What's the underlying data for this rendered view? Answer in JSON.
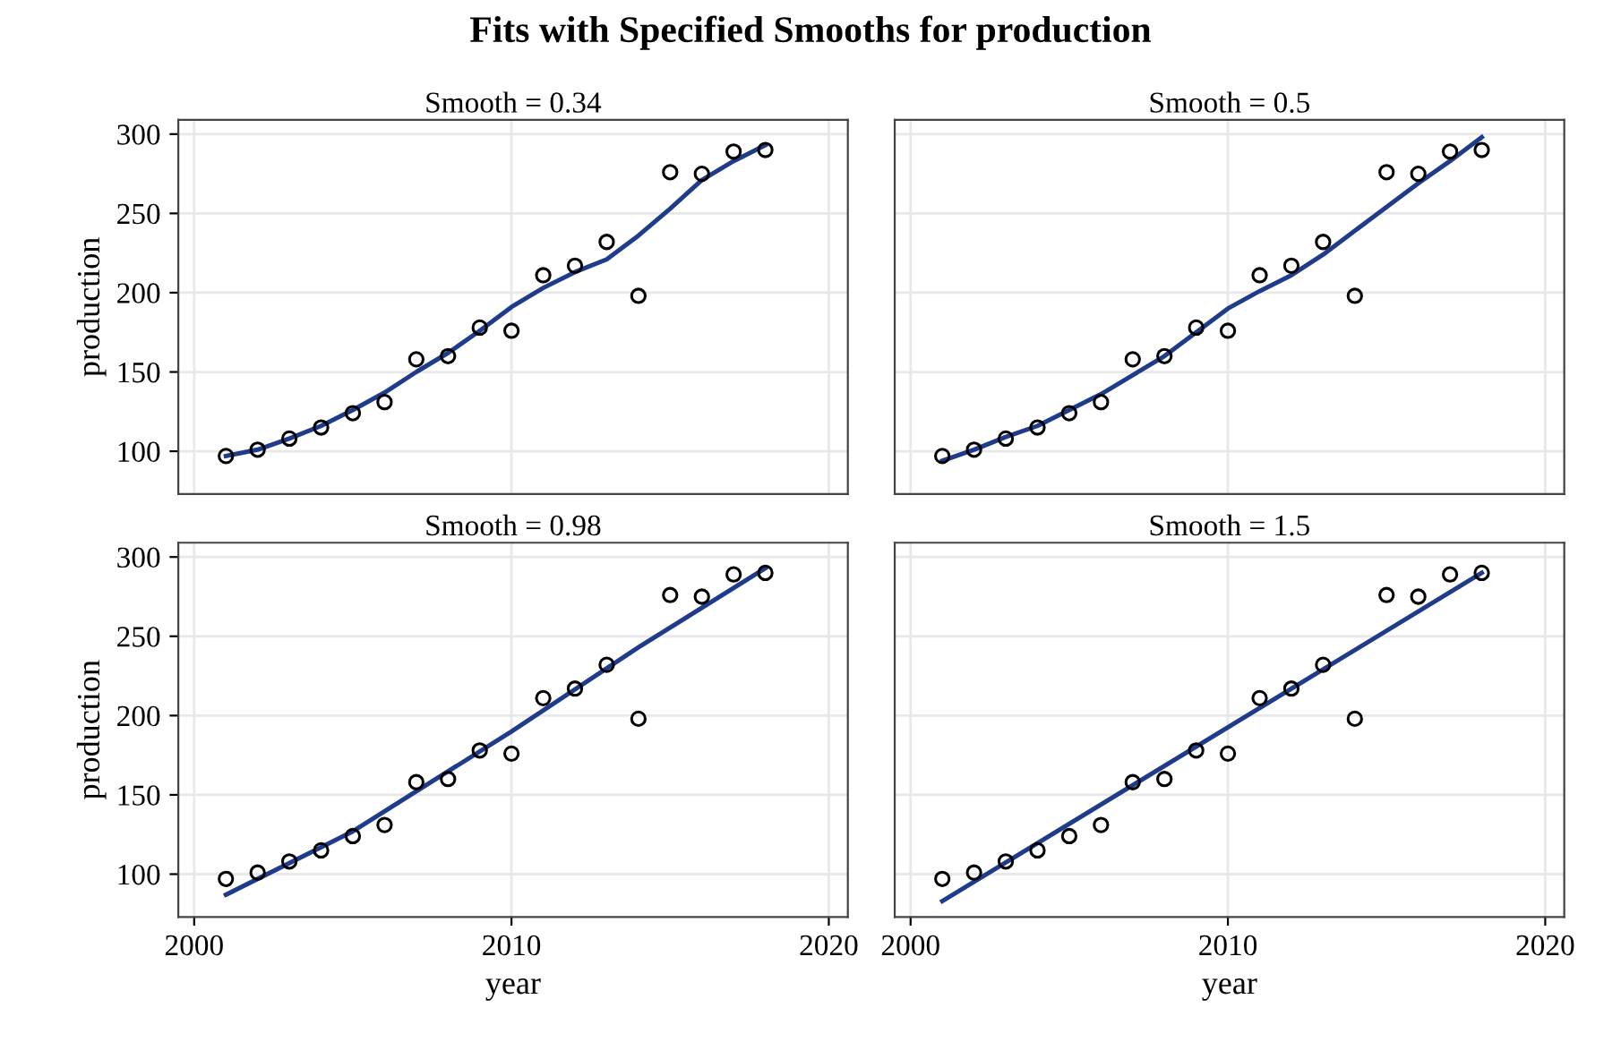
{
  "chart_data": [
    {
      "type": "scatter",
      "title": "Fits with Specified Smooths for production",
      "subtitle": "Smooth = 0.34",
      "ylabel": "production",
      "xlim": [
        1999.5,
        2020.6
      ],
      "ylim": [
        73,
        309
      ],
      "xticks": [
        2000,
        2010,
        2020
      ],
      "yticks": [
        100,
        150,
        200,
        250,
        300
      ],
      "tick_labels": "y",
      "grid": true,
      "marker": "circle",
      "series": [
        {
          "color": "#000000",
          "x": [
            2001,
            2002,
            2003,
            2004,
            2005,
            2006,
            2007,
            2008,
            2009,
            2010,
            2011,
            2012,
            2013,
            2014,
            2015,
            2016,
            2017,
            2018
          ],
          "values": [
            97,
            101,
            108,
            115,
            124,
            131,
            158,
            160,
            178,
            176,
            211,
            217,
            232,
            198,
            276,
            275,
            289,
            290
          ]
        },
        {
          "type": "line",
          "color": "#1f3c8c",
          "marker": "none",
          "x": [
            2001,
            2002,
            2003,
            2004,
            2005,
            2006,
            2007,
            2008,
            2009,
            2010,
            2011,
            2012,
            2013,
            2014,
            2015,
            2016,
            2017,
            2018
          ],
          "values": [
            97,
            101,
            108,
            116,
            126,
            137,
            150,
            162,
            176,
            191,
            203,
            213,
            221,
            236,
            253,
            271,
            283,
            293
          ]
        }
      ]
    },
    {
      "type": "scatter",
      "subtitle": "Smooth = 0.5",
      "xlim": [
        1999.5,
        2020.6
      ],
      "ylim": [
        73,
        309
      ],
      "xticks": [
        2000,
        2010,
        2020
      ],
      "yticks": [
        100,
        150,
        200,
        250,
        300
      ],
      "tick_labels": false,
      "grid": true,
      "marker": "circle",
      "series": [
        {
          "color": "#000000",
          "x": [
            2001,
            2002,
            2003,
            2004,
            2005,
            2006,
            2007,
            2008,
            2009,
            2010,
            2011,
            2012,
            2013,
            2014,
            2015,
            2016,
            2017,
            2018
          ],
          "values": [
            97,
            101,
            108,
            115,
            124,
            131,
            158,
            160,
            178,
            176,
            211,
            217,
            232,
            198,
            276,
            275,
            289,
            290
          ]
        },
        {
          "type": "line",
          "color": "#1f3c8c",
          "marker": "none",
          "x": [
            2001,
            2002,
            2003,
            2004,
            2005,
            2006,
            2007,
            2008,
            2009,
            2010,
            2011,
            2012,
            2013,
            2014,
            2015,
            2016,
            2017,
            2018
          ],
          "values": [
            94,
            101,
            109,
            116,
            126,
            136,
            148,
            160,
            175,
            190,
            201,
            211,
            224,
            239,
            254,
            269,
            283,
            298
          ]
        }
      ]
    },
    {
      "type": "scatter",
      "subtitle": "Smooth = 0.98",
      "xlabel": "year",
      "ylabel": "production",
      "xlim": [
        1999.5,
        2020.6
      ],
      "ylim": [
        73,
        309
      ],
      "xticks": [
        2000,
        2010,
        2020
      ],
      "yticks": [
        100,
        150,
        200,
        250,
        300
      ],
      "grid": true,
      "marker": "circle",
      "series": [
        {
          "color": "#000000",
          "x": [
            2001,
            2002,
            2003,
            2004,
            2005,
            2006,
            2007,
            2008,
            2009,
            2010,
            2011,
            2012,
            2013,
            2014,
            2015,
            2016,
            2017,
            2018
          ],
          "values": [
            97,
            101,
            108,
            115,
            124,
            131,
            158,
            160,
            178,
            176,
            211,
            217,
            232,
            198,
            276,
            275,
            289,
            290
          ]
        },
        {
          "type": "line",
          "color": "#1f3c8c",
          "marker": "none",
          "x": [
            2001,
            2005,
            2010,
            2014,
            2018
          ],
          "values": [
            87,
            127,
            190,
            243,
            293
          ]
        }
      ]
    },
    {
      "type": "scatter",
      "subtitle": "Smooth = 1.5",
      "xlabel": "year",
      "xlim": [
        1999.5,
        2020.6
      ],
      "ylim": [
        73,
        309
      ],
      "xticks": [
        2000,
        2010,
        2020
      ],
      "yticks": [
        100,
        150,
        200,
        250,
        300
      ],
      "tick_labels": "x",
      "grid": true,
      "marker": "circle",
      "series": [
        {
          "color": "#000000",
          "x": [
            2001,
            2002,
            2003,
            2004,
            2005,
            2006,
            2007,
            2008,
            2009,
            2010,
            2011,
            2012,
            2013,
            2014,
            2015,
            2016,
            2017,
            2018
          ],
          "values": [
            97,
            101,
            108,
            115,
            124,
            131,
            158,
            160,
            178,
            176,
            211,
            217,
            232,
            198,
            276,
            275,
            289,
            290
          ]
        },
        {
          "type": "line",
          "color": "#1f3c8c",
          "marker": "none",
          "x": [
            2001,
            2018
          ],
          "values": [
            83,
            290
          ]
        }
      ]
    }
  ]
}
